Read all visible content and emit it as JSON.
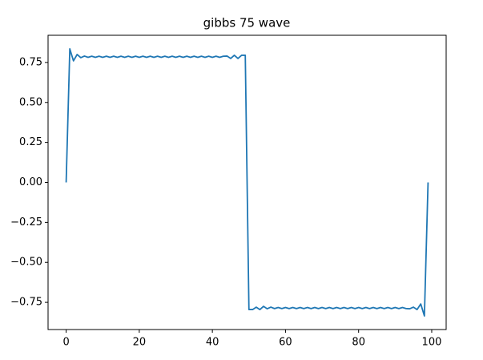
{
  "chart_data": {
    "type": "line",
    "title": "gibbs 75 wave",
    "x": [
      0,
      1,
      2,
      3,
      4,
      5,
      6,
      7,
      8,
      9,
      10,
      11,
      12,
      13,
      14,
      15,
      16,
      17,
      18,
      19,
      20,
      21,
      22,
      23,
      24,
      25,
      26,
      27,
      28,
      29,
      30,
      31,
      32,
      33,
      34,
      35,
      36,
      37,
      38,
      39,
      40,
      41,
      42,
      43,
      44,
      45,
      46,
      47,
      48,
      49,
      50,
      51,
      52,
      53,
      54,
      55,
      56,
      57,
      58,
      59,
      60,
      61,
      62,
      63,
      64,
      65,
      66,
      67,
      68,
      69,
      70,
      71,
      72,
      73,
      74,
      75,
      76,
      77,
      78,
      79,
      80,
      81,
      82,
      83,
      84,
      85,
      86,
      87,
      88,
      89,
      90,
      91,
      92,
      93,
      94,
      95,
      96,
      97,
      98,
      99
    ],
    "series": [
      {
        "color": "#1f77b4",
        "values": [
          0,
          0.835,
          0.76,
          0.8,
          0.78,
          0.79,
          0.782,
          0.789,
          0.782,
          0.789,
          0.782,
          0.789,
          0.782,
          0.789,
          0.782,
          0.789,
          0.782,
          0.789,
          0.782,
          0.789,
          0.782,
          0.789,
          0.782,
          0.789,
          0.782,
          0.789,
          0.782,
          0.789,
          0.782,
          0.789,
          0.782,
          0.789,
          0.782,
          0.789,
          0.782,
          0.789,
          0.782,
          0.789,
          0.782,
          0.789,
          0.782,
          0.789,
          0.782,
          0.789,
          0.79,
          0.775,
          0.795,
          0.775,
          0.795,
          0.795,
          -0.795,
          -0.795,
          -0.78,
          -0.795,
          -0.775,
          -0.79,
          -0.78,
          -0.789,
          -0.782,
          -0.789,
          -0.782,
          -0.789,
          -0.782,
          -0.789,
          -0.782,
          -0.789,
          -0.782,
          -0.789,
          -0.782,
          -0.789,
          -0.782,
          -0.789,
          -0.782,
          -0.789,
          -0.782,
          -0.789,
          -0.782,
          -0.789,
          -0.782,
          -0.789,
          -0.782,
          -0.789,
          -0.782,
          -0.789,
          -0.782,
          -0.789,
          -0.782,
          -0.789,
          -0.782,
          -0.789,
          -0.782,
          -0.789,
          -0.782,
          -0.789,
          -0.79,
          -0.78,
          -0.795,
          -0.76,
          -0.835,
          0
        ]
      }
    ],
    "xlim": [
      -4.95,
      103.95
    ],
    "xticks": [
      0,
      20,
      40,
      60,
      80,
      100
    ],
    "ylim": [
      -0.92,
      0.92
    ],
    "yticks": [
      {
        "value": 0.75,
        "label": "0.75"
      },
      {
        "value": 0.5,
        "label": "0.50"
      },
      {
        "value": 0.25,
        "label": "0.25"
      },
      {
        "value": 0,
        "label": "0.00"
      },
      {
        "value": -0.25,
        "label": "−0.25"
      },
      {
        "value": -0.5,
        "label": "−0.50"
      },
      {
        "value": -0.75,
        "label": "−0.75"
      }
    ]
  }
}
